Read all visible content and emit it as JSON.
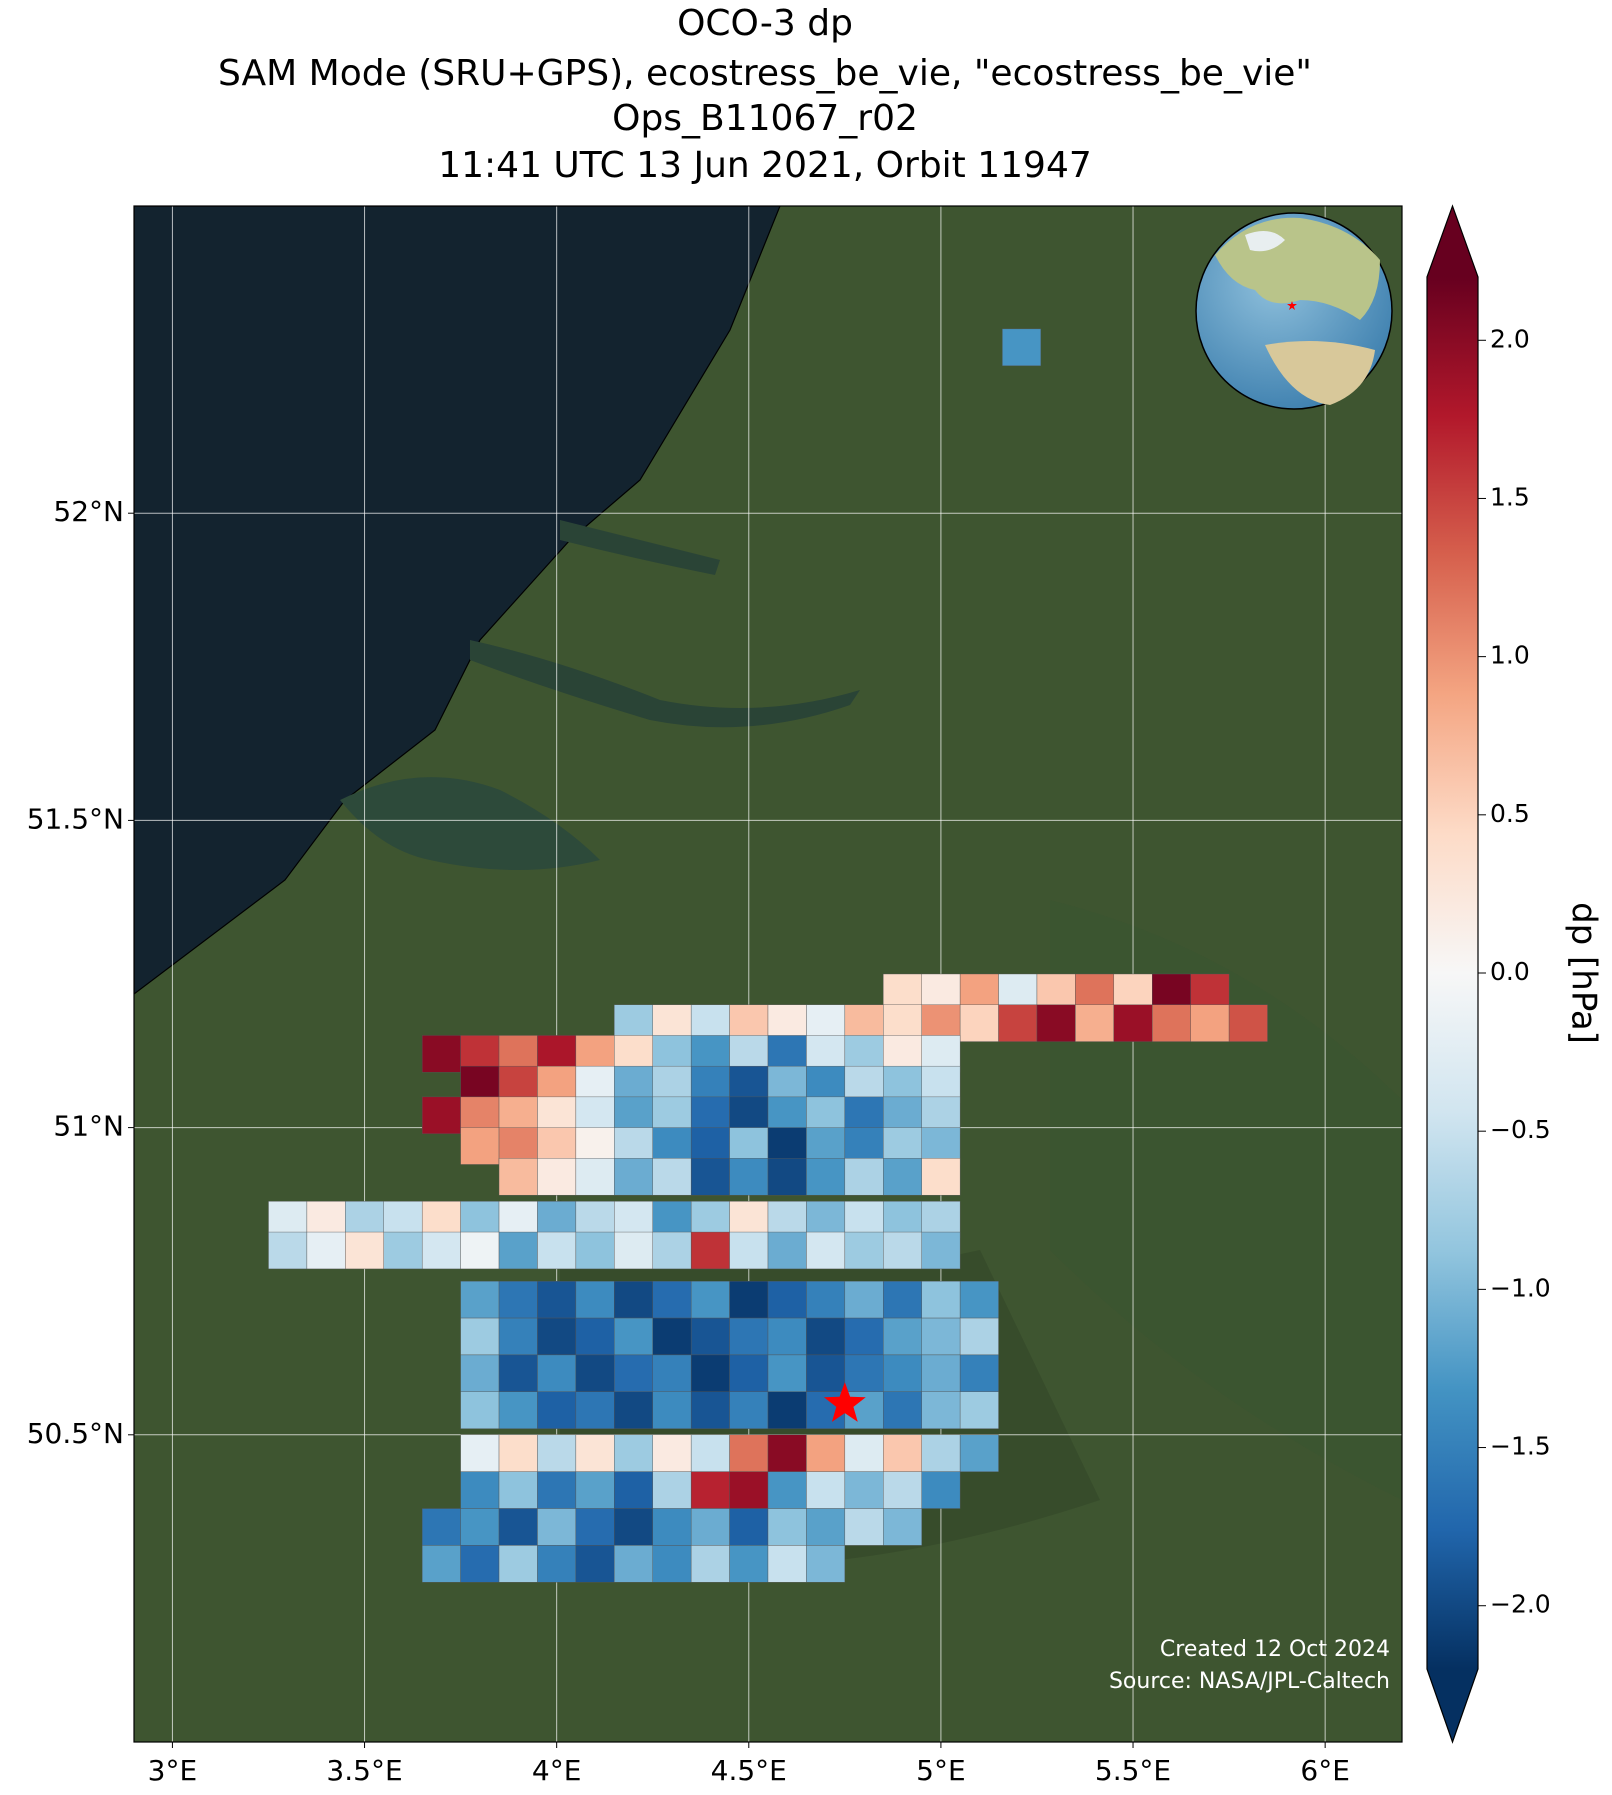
{
  "chart_data": {
    "type": "map",
    "title": [
      "OCO-3 dp",
      "SAM Mode (SRU+GPS), ecostress_be_vie, \"ecostress_be_vie\"",
      "Ops_B11067_r02",
      "11:41 UTC 13 Jun 2021, Orbit 11947"
    ],
    "annotations": [
      "Created 12 Oct 2024",
      "Source: NASA/JPL-Caltech"
    ],
    "colorbar_label": "dp [hPa]",
    "colormap": [
      "#053061",
      "#2166ac",
      "#4393c3",
      "#92c5de",
      "#d1e5f0",
      "#f7f7f7",
      "#fddbc7",
      "#f4a582",
      "#d6604d",
      "#b2182b",
      "#67001f"
    ],
    "clim": [
      -2.2,
      2.2
    ],
    "cticks": [
      {
        "value": -2,
        "label": "−2.0"
      },
      {
        "value": -1.5,
        "label": "−1.5"
      },
      {
        "value": -1,
        "label": "−1.0"
      },
      {
        "value": -0.5,
        "label": "−0.5"
      },
      {
        "value": 0,
        "label": "0.0"
      },
      {
        "value": 0.5,
        "label": "0.5"
      },
      {
        "value": 1,
        "label": "1.0"
      },
      {
        "value": 1.5,
        "label": "1.5"
      },
      {
        "value": 2,
        "label": "2.0"
      }
    ],
    "xlim": [
      2.9,
      6.2
    ],
    "ylim": [
      50.0,
      52.5
    ],
    "xticks": [
      {
        "value": 3,
        "label": "3°E"
      },
      {
        "value": 3.5,
        "label": "3.5°E"
      },
      {
        "value": 4,
        "label": "4°E"
      },
      {
        "value": 4.5,
        "label": "4.5°E"
      },
      {
        "value": 5,
        "label": "5°E"
      },
      {
        "value": 5.5,
        "label": "5.5°E"
      },
      {
        "value": 6,
        "label": "6°E"
      }
    ],
    "yticks": [
      {
        "value": 50.5,
        "label": "50.5°N"
      },
      {
        "value": 51,
        "label": "51°N"
      },
      {
        "value": 51.5,
        "label": "51.5°N"
      },
      {
        "value": 52,
        "label": "52°N"
      }
    ],
    "grid": true,
    "target": {
      "lon": 4.75,
      "lat": 50.55,
      "color": "#ff0000"
    },
    "rows": [
      {
        "lat": 52.27,
        "lon": [
          5.21
        ],
        "values": [
          -1.3
        ]
      },
      {
        "lat": 51.22,
        "lon": [
          4.9,
          5.0,
          5.1,
          5.2,
          5.3,
          5.4,
          5.5,
          5.6,
          5.7
        ],
        "values": [
          0.4,
          0.2,
          0.9,
          -0.3,
          0.6,
          1.2,
          0.5,
          2.1,
          1.6
        ]
      },
      {
        "lat": 51.17,
        "lon": [
          4.2,
          4.3,
          4.4,
          4.5,
          4.6,
          4.7,
          4.8,
          4.9,
          5.0,
          5.1,
          5.2,
          5.3,
          5.4,
          5.5,
          5.6,
          5.7,
          5.8
        ],
        "values": [
          -0.8,
          0.3,
          -0.5,
          0.6,
          0.2,
          -0.2,
          0.7,
          0.4,
          1.0,
          0.5,
          1.5,
          2.0,
          0.8,
          1.9,
          1.2,
          0.9,
          1.4
        ]
      },
      {
        "lat": 51.12,
        "lon": [
          3.7,
          3.8,
          3.9,
          4.0,
          4.1,
          4.2,
          4.3,
          4.4,
          4.5,
          4.6,
          4.7,
          4.8,
          4.9,
          5.0
        ],
        "values": [
          2.0,
          1.6,
          1.2,
          1.8,
          0.9,
          0.4,
          -0.9,
          -1.3,
          -0.6,
          -1.6,
          -0.4,
          -0.8,
          0.2,
          -0.3
        ]
      },
      {
        "lat": 51.07,
        "lon": [
          3.8,
          3.9,
          4.0,
          4.1,
          4.2,
          4.3,
          4.4,
          4.5,
          4.6,
          4.7,
          4.8,
          4.9,
          5.0
        ],
        "values": [
          2.1,
          1.5,
          0.9,
          -0.2,
          -1.1,
          -0.7,
          -1.5,
          -1.9,
          -1.0,
          -1.4,
          -0.6,
          -0.9,
          -0.5
        ]
      },
      {
        "lat": 51.02,
        "lon": [
          3.7,
          3.8,
          3.9,
          4.0,
          4.1,
          4.2,
          4.3,
          4.4,
          4.5,
          4.6,
          4.7,
          4.8,
          4.9,
          5.0
        ],
        "values": [
          1.9,
          1.1,
          0.8,
          0.3,
          -0.4,
          -1.2,
          -0.8,
          -1.7,
          -2.0,
          -1.3,
          -0.9,
          -1.6,
          -1.1,
          -0.7
        ]
      },
      {
        "lat": 50.97,
        "lon": [
          3.8,
          3.9,
          4.0,
          4.1,
          4.2,
          4.3,
          4.4,
          4.5,
          4.6,
          4.7,
          4.8,
          4.9,
          5.0
        ],
        "values": [
          0.9,
          1.1,
          0.6,
          0.1,
          -0.6,
          -1.4,
          -1.8,
          -0.9,
          -2.1,
          -1.2,
          -1.5,
          -0.8,
          -1.0
        ]
      },
      {
        "lat": 50.92,
        "lon": [
          3.9,
          4.0,
          4.1,
          4.2,
          4.3,
          4.4,
          4.5,
          4.6,
          4.7,
          4.8,
          4.9,
          5.0
        ],
        "values": [
          0.7,
          0.2,
          -0.3,
          -1.1,
          -0.6,
          -1.9,
          -1.4,
          -2.0,
          -1.3,
          -0.7,
          -1.2,
          0.4
        ]
      },
      {
        "lat": 50.85,
        "lon": [
          3.3,
          3.4,
          3.5,
          3.6,
          3.7,
          3.8,
          3.9,
          4.0,
          4.1,
          4.2,
          4.3,
          4.4,
          4.5,
          4.6,
          4.7,
          4.8,
          4.9,
          5.0
        ],
        "values": [
          -0.3,
          0.2,
          -0.7,
          -0.5,
          0.4,
          -0.9,
          -0.2,
          -1.1,
          -0.6,
          -0.4,
          -1.3,
          -0.8,
          0.3,
          -0.6,
          -1.0,
          -0.5,
          -0.9,
          -0.7
        ]
      },
      {
        "lat": 50.8,
        "lon": [
          3.3,
          3.4,
          3.5,
          3.6,
          3.7,
          3.8,
          3.9,
          4.0,
          4.1,
          4.2,
          4.3,
          4.4,
          4.5,
          4.6,
          4.7,
          4.8,
          4.9,
          5.0
        ],
        "values": [
          -0.6,
          -0.2,
          0.3,
          -0.8,
          -0.4,
          -0.1,
          -1.2,
          -0.5,
          -0.9,
          -0.3,
          -0.7,
          1.6,
          -0.5,
          -1.1,
          -0.4,
          -0.8,
          -0.6,
          -1.0
        ]
      },
      {
        "lat": 50.72,
        "lon": [
          3.8,
          3.9,
          4.0,
          4.1,
          4.2,
          4.3,
          4.4,
          4.5,
          4.6,
          4.7,
          4.8,
          4.9,
          5.0,
          5.1
        ],
        "values": [
          -1.2,
          -1.6,
          -1.9,
          -1.4,
          -2.0,
          -1.7,
          -1.3,
          -2.1,
          -1.8,
          -1.5,
          -1.1,
          -1.6,
          -0.9,
          -1.3
        ]
      },
      {
        "lat": 50.66,
        "lon": [
          3.8,
          3.9,
          4.0,
          4.1,
          4.2,
          4.3,
          4.4,
          4.5,
          4.6,
          4.7,
          4.8,
          4.9,
          5.0,
          5.1
        ],
        "values": [
          -0.8,
          -1.5,
          -2.0,
          -1.8,
          -1.3,
          -2.1,
          -1.9,
          -1.6,
          -1.4,
          -2.0,
          -1.7,
          -1.2,
          -1.0,
          -0.7
        ]
      },
      {
        "lat": 50.6,
        "lon": [
          3.8,
          3.9,
          4.0,
          4.1,
          4.2,
          4.3,
          4.4,
          4.5,
          4.6,
          4.7,
          4.8,
          4.9,
          5.0,
          5.1
        ],
        "values": [
          -1.1,
          -1.9,
          -1.4,
          -2.0,
          -1.7,
          -1.5,
          -2.1,
          -1.8,
          -1.3,
          -1.9,
          -1.6,
          -1.4,
          -1.1,
          -1.5
        ]
      },
      {
        "lat": 50.54,
        "lon": [
          3.8,
          3.9,
          4.0,
          4.1,
          4.2,
          4.3,
          4.4,
          4.5,
          4.6,
          4.7,
          4.8,
          4.9,
          5.0,
          5.1
        ],
        "values": [
          -0.9,
          -1.3,
          -1.8,
          -1.6,
          -2.0,
          -1.4,
          -1.9,
          -1.5,
          -2.1,
          -1.7,
          -1.2,
          -1.6,
          -1.0,
          -0.8
        ]
      },
      {
        "lat": 50.47,
        "lon": [
          3.8,
          3.9,
          4.0,
          4.1,
          4.2,
          4.3,
          4.4,
          4.5,
          4.6,
          4.7,
          4.8,
          4.9,
          5.0,
          5.1
        ],
        "values": [
          -0.2,
          0.4,
          -0.6,
          0.3,
          -0.8,
          0.2,
          -0.5,
          1.2,
          2.0,
          0.9,
          -0.3,
          0.6,
          -0.7,
          -1.2
        ]
      },
      {
        "lat": 50.41,
        "lon": [
          3.8,
          3.9,
          4.0,
          4.1,
          4.2,
          4.3,
          4.4,
          4.5,
          4.6,
          4.7,
          4.8,
          4.9,
          5.0
        ],
        "values": [
          -1.4,
          -0.9,
          -1.6,
          -1.2,
          -1.8,
          -0.7,
          1.7,
          1.9,
          -1.3,
          -0.5,
          -1.0,
          -0.6,
          -1.4
        ]
      },
      {
        "lat": 50.35,
        "lon": [
          3.7,
          3.8,
          3.9,
          4.0,
          4.1,
          4.2,
          4.3,
          4.4,
          4.5,
          4.6,
          4.7,
          4.8,
          4.9
        ],
        "values": [
          -1.6,
          -1.3,
          -1.9,
          -1.0,
          -1.7,
          -2.0,
          -1.4,
          -1.1,
          -1.8,
          -0.9,
          -1.2,
          -0.6,
          -1.0
        ]
      },
      {
        "lat": 50.29,
        "lon": [
          3.7,
          3.8,
          3.9,
          4.0,
          4.1,
          4.2,
          4.3,
          4.4,
          4.5,
          4.6,
          4.7
        ],
        "values": [
          -1.2,
          -1.7,
          -0.8,
          -1.5,
          -1.9,
          -1.1,
          -1.4,
          -0.7,
          -1.3,
          -0.5,
          -1.0
        ]
      }
    ]
  }
}
